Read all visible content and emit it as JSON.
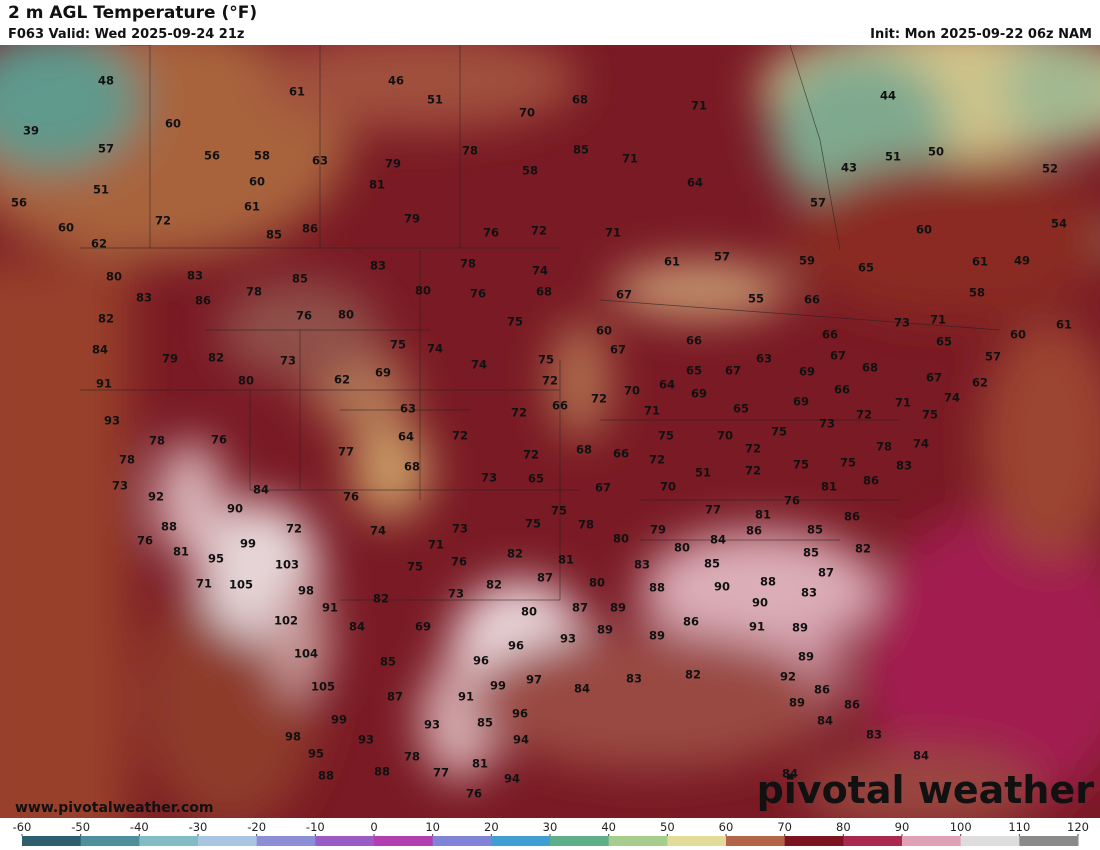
{
  "header": {
    "title": "2 m AGL Temperature (°F)",
    "valid": "F063 Valid: Wed 2025-09-24 21z",
    "init": "Init: Mon 2025-09-22 06z NAM"
  },
  "map": {
    "website": "www.pivotalweather.com",
    "logo": "pivotal weather",
    "stations": [
      48,
      61,
      46,
      51,
      68,
      71,
      39,
      60,
      70,
      57,
      56,
      58,
      63,
      79,
      78,
      85,
      71,
      51,
      50,
      44,
      52,
      51,
      60,
      81,
      58,
      64,
      43,
      57,
      56,
      61,
      72,
      79,
      60,
      85,
      86,
      76,
      72,
      71,
      60,
      54,
      62,
      80,
      83,
      85,
      83,
      78,
      74,
      61,
      57,
      59,
      65,
      61,
      49,
      83,
      86,
      78,
      80,
      76,
      68,
      67,
      55,
      66,
      58,
      82,
      76,
      80,
      75,
      60,
      66,
      73,
      71,
      60,
      61,
      84,
      79,
      82,
      73,
      75,
      74,
      74,
      75,
      67,
      63,
      66,
      67,
      65,
      57,
      91,
      80,
      62,
      69,
      72,
      70,
      64,
      65,
      67,
      69,
      68,
      66,
      67,
      62,
      74,
      93,
      63,
      72,
      66,
      72,
      71,
      69,
      65,
      69,
      73,
      72,
      71,
      75,
      78,
      76,
      64,
      72,
      75,
      70,
      75,
      72,
      78,
      74,
      78,
      77,
      68,
      72,
      68,
      66,
      72,
      73,
      65,
      51,
      72,
      75,
      75,
      83,
      73,
      84,
      76,
      67,
      70,
      81,
      86,
      92,
      90,
      75,
      77,
      81,
      76,
      88,
      72,
      74,
      73,
      75,
      78,
      79,
      85,
      86,
      76,
      99,
      71,
      80,
      80,
      84,
      86,
      82,
      81,
      95,
      103,
      82,
      81,
      76,
      75,
      85,
      85,
      71,
      105,
      98,
      82,
      87,
      80,
      83,
      88,
      90,
      88,
      87,
      73,
      82,
      83,
      91,
      102,
      84,
      80,
      87,
      89,
      90,
      69,
      93,
      89,
      89,
      86,
      91,
      89,
      96,
      104,
      85,
      96,
      89,
      105,
      87,
      91,
      99,
      97,
      84,
      83,
      82,
      92,
      86,
      99,
      93,
      85,
      96,
      89,
      86,
      84,
      98,
      93,
      94,
      83,
      95,
      78,
      81,
      84,
      88,
      88,
      77,
      94,
      84,
      76
    ]
  },
  "colorbar": {
    "ticks": [
      -60,
      -50,
      -40,
      -30,
      -20,
      -10,
      0,
      10,
      20,
      30,
      40,
      50,
      60,
      70,
      80,
      90,
      100,
      110,
      120
    ],
    "colors": [
      "#2e5f6e",
      "#4f8f9c",
      "#82bcc4",
      "#a8c6e2",
      "#8c8fd6",
      "#9a5cc4",
      "#b23fb0",
      "#7f84d6",
      "#3f9ed2",
      "#5fae8a",
      "#a6cc8e",
      "#e3dc98",
      "#b3654a",
      "#7a1420",
      "#a8284e",
      "#e0a0b6",
      "#dddddd",
      "#8a8a8a"
    ]
  }
}
